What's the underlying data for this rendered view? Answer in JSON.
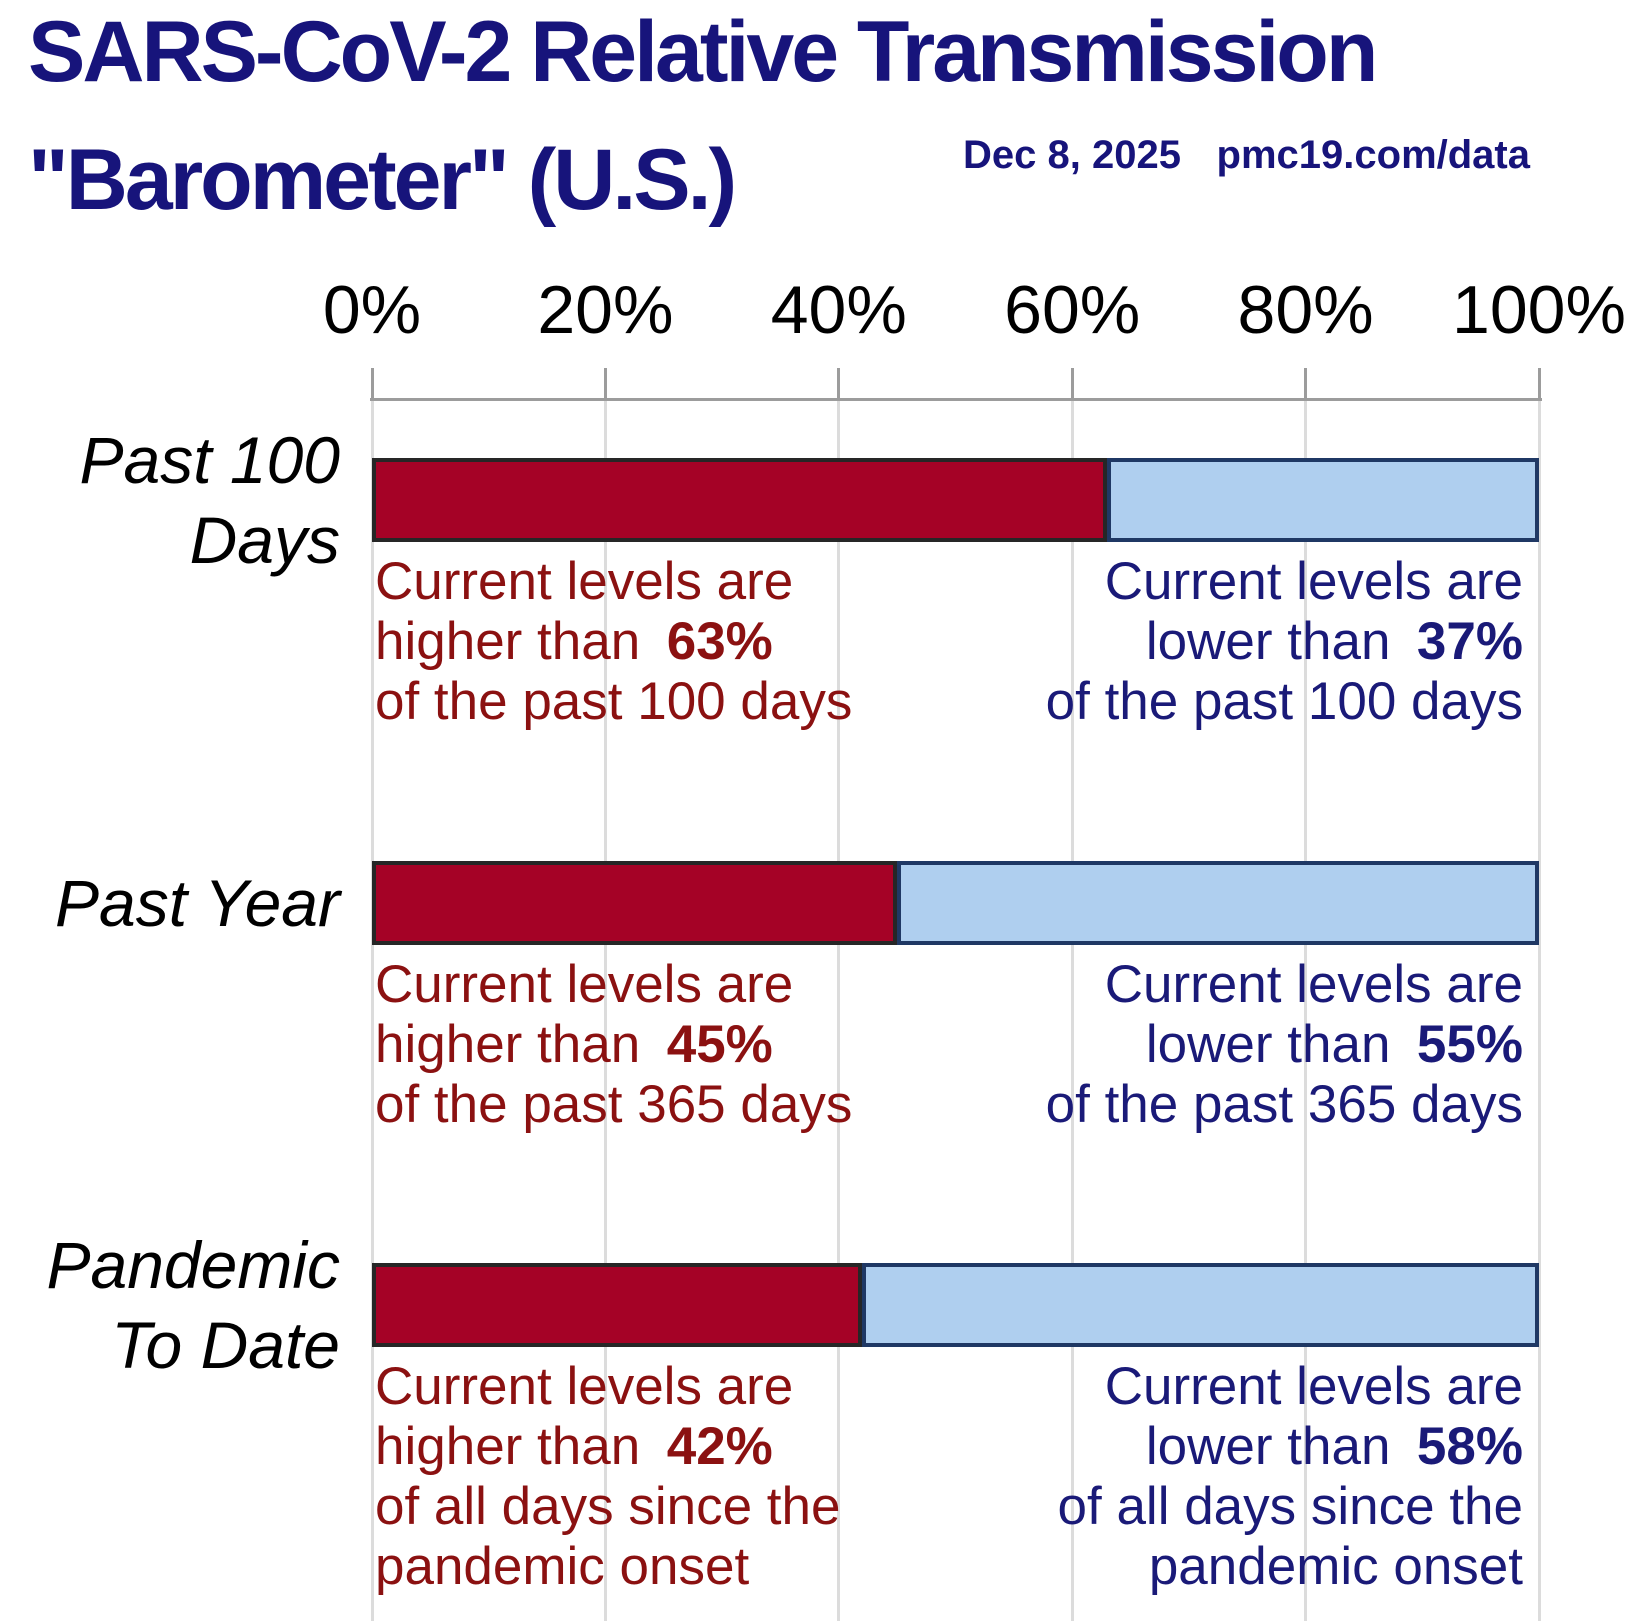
{
  "header": {
    "title_line1": "SARS-CoV-2 Relative Transmission",
    "title_line2": "\"Barometer\" (U.S.)",
    "date": "Dec 8, 2025",
    "source": "pmc19.com/data"
  },
  "axis": {
    "tick_labels": [
      "0%",
      "20%",
      "40%",
      "60%",
      "80%",
      "100%"
    ]
  },
  "colors": {
    "title_navy": "#17147B",
    "text_navy": "#1A1A78",
    "text_red": "#8B1111",
    "bar_red": "#A50226",
    "bar_red_border": "#262626",
    "bar_blue": "#AFCFEF",
    "bar_blue_border": "#1F3864",
    "gridline": "#DCDCDC",
    "axis_gray": "#9C9C9C"
  },
  "chart_data": {
    "type": "bar",
    "orientation": "horizontal",
    "stacked": true,
    "title": "SARS-CoV-2 Relative Transmission \"Barometer\" (U.S.)",
    "date": "Dec 8, 2025",
    "source": "pmc19.com/data",
    "xlim": [
      0,
      100
    ],
    "x_tick_labels": [
      "0%",
      "20%",
      "40%",
      "60%",
      "80%",
      "100%"
    ],
    "grid": true,
    "legend": false,
    "categories": [
      "Past 100 Days",
      "Past Year",
      "Pandemic To Date"
    ],
    "series": [
      {
        "name": "Current levels are higher than",
        "color": "#A50226",
        "values": [
          63,
          45,
          42
        ]
      },
      {
        "name": "Current levels are lower than",
        "color": "#AFCFEF",
        "values": [
          37,
          55,
          58
        ]
      }
    ],
    "rows": [
      {
        "label_lines": [
          "Past 100",
          "Days"
        ],
        "higher_pct": 63,
        "lower_pct": 37,
        "left_lines": [
          [
            {
              "t": "Current levels are"
            }
          ],
          [
            {
              "t": "higher than"
            },
            {
              "t": "63%",
              "b": true
            }
          ],
          [
            {
              "t": "of the past 100 days"
            }
          ]
        ],
        "right_lines": [
          [
            {
              "t": "Current levels are"
            }
          ],
          [
            {
              "t": "lower than"
            },
            {
              "t": "37%",
              "b": true
            }
          ],
          [
            {
              "t": "of the past 100 days"
            }
          ]
        ]
      },
      {
        "label_lines": [
          "Past Year"
        ],
        "higher_pct": 45,
        "lower_pct": 55,
        "left_lines": [
          [
            {
              "t": "Current levels are"
            }
          ],
          [
            {
              "t": "higher than"
            },
            {
              "t": "45%",
              "b": true
            }
          ],
          [
            {
              "t": "of the past 365 days"
            }
          ]
        ],
        "right_lines": [
          [
            {
              "t": "Current levels are"
            }
          ],
          [
            {
              "t": "lower than"
            },
            {
              "t": "55%",
              "b": true
            }
          ],
          [
            {
              "t": "of the past 365 days"
            }
          ]
        ]
      },
      {
        "label_lines": [
          "Pandemic",
          "To Date"
        ],
        "higher_pct": 42,
        "lower_pct": 58,
        "left_lines": [
          [
            {
              "t": "Current levels are"
            }
          ],
          [
            {
              "t": "higher than"
            },
            {
              "t": "42%",
              "b": true
            }
          ],
          [
            {
              "t": "of all days since the"
            }
          ],
          [
            {
              "t": "pandemic onset"
            }
          ]
        ],
        "right_lines": [
          [
            {
              "t": "Current levels are"
            }
          ],
          [
            {
              "t": "lower than"
            },
            {
              "t": "58%",
              "b": true
            }
          ],
          [
            {
              "t": "of all days since the"
            }
          ],
          [
            {
              "t": "pandemic onset"
            }
          ]
        ]
      }
    ]
  }
}
